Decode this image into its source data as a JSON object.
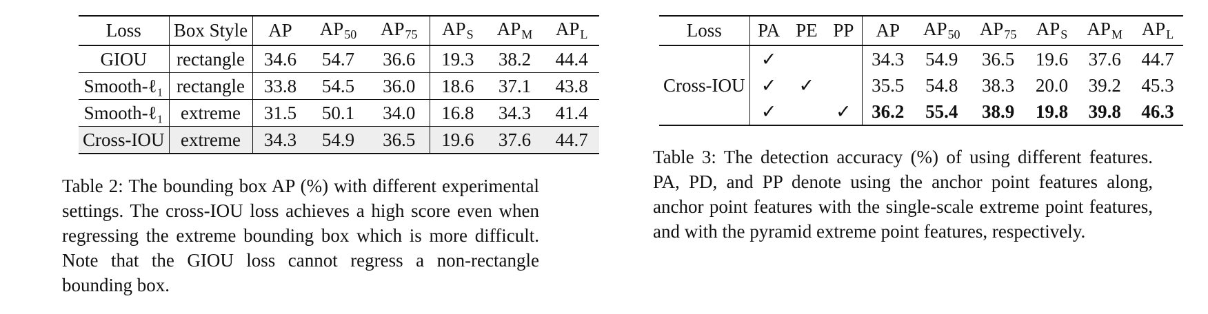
{
  "table2": {
    "headers": [
      "Loss",
      "Box Style",
      "AP",
      "AP",
      "AP",
      "AP",
      "AP",
      "AP"
    ],
    "header_subscripts": [
      "",
      "",
      "",
      "50",
      "75",
      "S",
      "M",
      "L"
    ],
    "rows": [
      {
        "loss": "GIOU",
        "style": "rectangle",
        "vals": [
          "34.6",
          "54.7",
          "36.6",
          "19.3",
          "38.2",
          "44.4"
        ]
      },
      {
        "loss": "Smooth-ℓ₁",
        "style": "rectangle",
        "vals": [
          "33.8",
          "54.5",
          "36.0",
          "18.6",
          "37.1",
          "43.8"
        ]
      },
      {
        "loss": "Smooth-ℓ₁",
        "style": "extreme",
        "vals": [
          "31.5",
          "50.1",
          "34.0",
          "16.8",
          "34.3",
          "41.4"
        ]
      },
      {
        "loss": "Cross-IOU",
        "style": "extreme",
        "vals": [
          "34.3",
          "54.9",
          "36.5",
          "19.6",
          "37.6",
          "44.7"
        ]
      }
    ],
    "caption": "Table 2: The bounding box AP (%) with different experimental settings. The cross-IOU loss achieves a high score even when regressing the extreme bounding box which is more difficult. Note that the GIOU loss cannot regress a non-rectangle bounding box."
  },
  "table3": {
    "headers": [
      "Loss",
      "PA",
      "PE",
      "PP",
      "AP",
      "AP",
      "AP",
      "AP",
      "AP",
      "AP"
    ],
    "header_subscripts": [
      "",
      "",
      "",
      "",
      "",
      "50",
      "75",
      "S",
      "M",
      "L"
    ],
    "loss_label": "Cross-IOU",
    "rows": [
      {
        "pa": "✓",
        "pe": "",
        "pp": "",
        "vals": [
          "34.3",
          "54.9",
          "36.5",
          "19.6",
          "37.6",
          "44.7"
        ]
      },
      {
        "pa": "✓",
        "pe": "✓",
        "pp": "",
        "vals": [
          "35.5",
          "54.8",
          "38.3",
          "20.0",
          "39.2",
          "45.3"
        ]
      },
      {
        "pa": "✓",
        "pe": "",
        "pp": "✓",
        "vals": [
          "36.2",
          "55.4",
          "38.9",
          "19.8",
          "39.8",
          "46.3"
        ]
      }
    ],
    "caption": "Table 3: The detection accuracy (%) of using different features. PA, PD, and PP denote using the anchor point features along, anchor point features with the single-scale extreme point features, and with the pyramid extreme point features, respectively."
  }
}
